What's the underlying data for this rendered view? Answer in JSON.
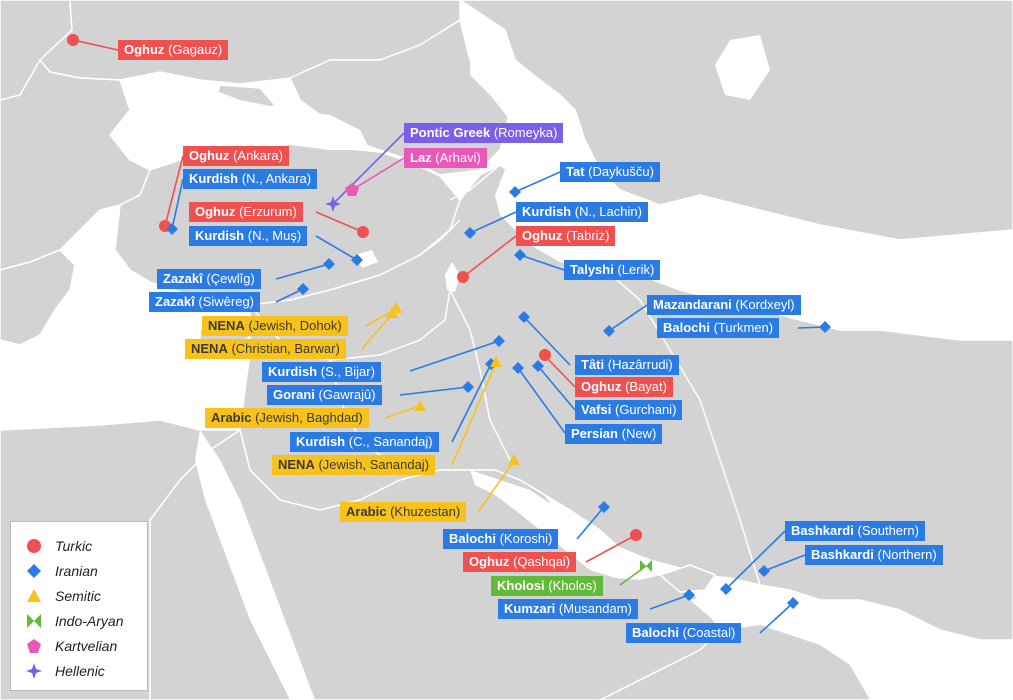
{
  "colors": {
    "water": "#ffffff",
    "land": "#d3d3d3",
    "border": "#ffffff",
    "line": "#2b7be4",
    "turkic": "#ef5050",
    "iranian": "#2b7be4",
    "semitic": "#f6c21b",
    "indo_aryan": "#62ba3a",
    "kartvelian": "#e858b8",
    "hellenic": "#7a5fe8"
  },
  "legend": {
    "items": [
      {
        "label": "Turkic",
        "icon": "circle-icon",
        "color": "#ef5050"
      },
      {
        "label": "Iranian",
        "icon": "diamond-icon",
        "color": "#2b7be4"
      },
      {
        "label": "Semitic",
        "icon": "triangle-icon",
        "color": "#f6c21b"
      },
      {
        "label": "Indo-Aryan",
        "icon": "bowtie-icon",
        "color": "#62ba3a"
      },
      {
        "label": "Kartvelian",
        "icon": "pentagon-icon",
        "color": "#e858b8"
      },
      {
        "label": "Hellenic",
        "icon": "star-icon",
        "color": "#7a5fe8"
      }
    ]
  },
  "labels": [
    {
      "name": "Oghuz",
      "detail": "(Gagauz)",
      "family": "turkic"
    },
    {
      "name": "Pontic Greek",
      "detail": "(Romeyka)",
      "family": "hell"
    },
    {
      "name": "Laz",
      "detail": "(Arhavi)",
      "family": "kart"
    },
    {
      "name": "Oghuz",
      "detail": "(Ankara)",
      "family": "turkic"
    },
    {
      "name": "Kurdish",
      "detail": "(N., Ankara)",
      "family": "iranian"
    },
    {
      "name": "Tat",
      "detail": "(Daykušču)",
      "family": "iranian"
    },
    {
      "name": "Oghuz",
      "detail": "(Erzurum)",
      "family": "turkic"
    },
    {
      "name": "Kurdish",
      "detail": "(N., Lachin)",
      "family": "iranian"
    },
    {
      "name": "Kurdish",
      "detail": "(N., Muş)",
      "family": "iranian"
    },
    {
      "name": "Oghuz",
      "detail": "(Tabriz)",
      "family": "turkic"
    },
    {
      "name": "Talyshi",
      "detail": "(Lerik)",
      "family": "iranian"
    },
    {
      "name": "Zazakî",
      "detail": "(Çewlîg)",
      "family": "iranian"
    },
    {
      "name": "Zazakî",
      "detail": "(Siwêreg)",
      "family": "iranian"
    },
    {
      "name": "Mazandarani",
      "detail": "(Kordxeyl)",
      "family": "iranian"
    },
    {
      "name": "NENA",
      "detail": "(Jewish, Dohok)",
      "family": "semitic"
    },
    {
      "name": "Balochi",
      "detail": "(Turkmen)",
      "family": "iranian"
    },
    {
      "name": "NENA",
      "detail": "(Christian, Barwar)",
      "family": "semitic"
    },
    {
      "name": "Tâti",
      "detail": "(Hazârrudi)",
      "family": "iranian"
    },
    {
      "name": "Kurdish",
      "detail": "(S., Bijar)",
      "family": "iranian"
    },
    {
      "name": "Oghuz",
      "detail": "(Bayat)",
      "family": "turkic"
    },
    {
      "name": "Gorani",
      "detail": "(Gawrajû)",
      "family": "iranian"
    },
    {
      "name": "Vafsi",
      "detail": "(Gurchani)",
      "family": "iranian"
    },
    {
      "name": "Arabic",
      "detail": "(Jewish, Baghdad)",
      "family": "semitic"
    },
    {
      "name": "Persian",
      "detail": "(New)",
      "family": "iranian"
    },
    {
      "name": "Kurdish",
      "detail": "(C., Sanandaj)",
      "family": "iranian"
    },
    {
      "name": "NENA",
      "detail": "(Jewish, Sanandaj)",
      "family": "semitic"
    },
    {
      "name": "Arabic",
      "detail": "(Khuzestan)",
      "family": "semitic"
    },
    {
      "name": "Bashkardi",
      "detail": "(Southern)",
      "family": "iranian"
    },
    {
      "name": "Balochi",
      "detail": "(Koroshi)",
      "family": "iranian"
    },
    {
      "name": "Bashkardi",
      "detail": "(Northern)",
      "family": "iranian"
    },
    {
      "name": "Oghuz",
      "detail": "(Qashqai)",
      "family": "turkic"
    },
    {
      "name": "Kholosi",
      "detail": "(Kholos)",
      "family": "indo"
    },
    {
      "name": "Kumzari",
      "detail": "(Musandam)",
      "family": "iranian"
    },
    {
      "name": "Balochi",
      "detail": "(Coastal)",
      "family": "iranian"
    }
  ]
}
